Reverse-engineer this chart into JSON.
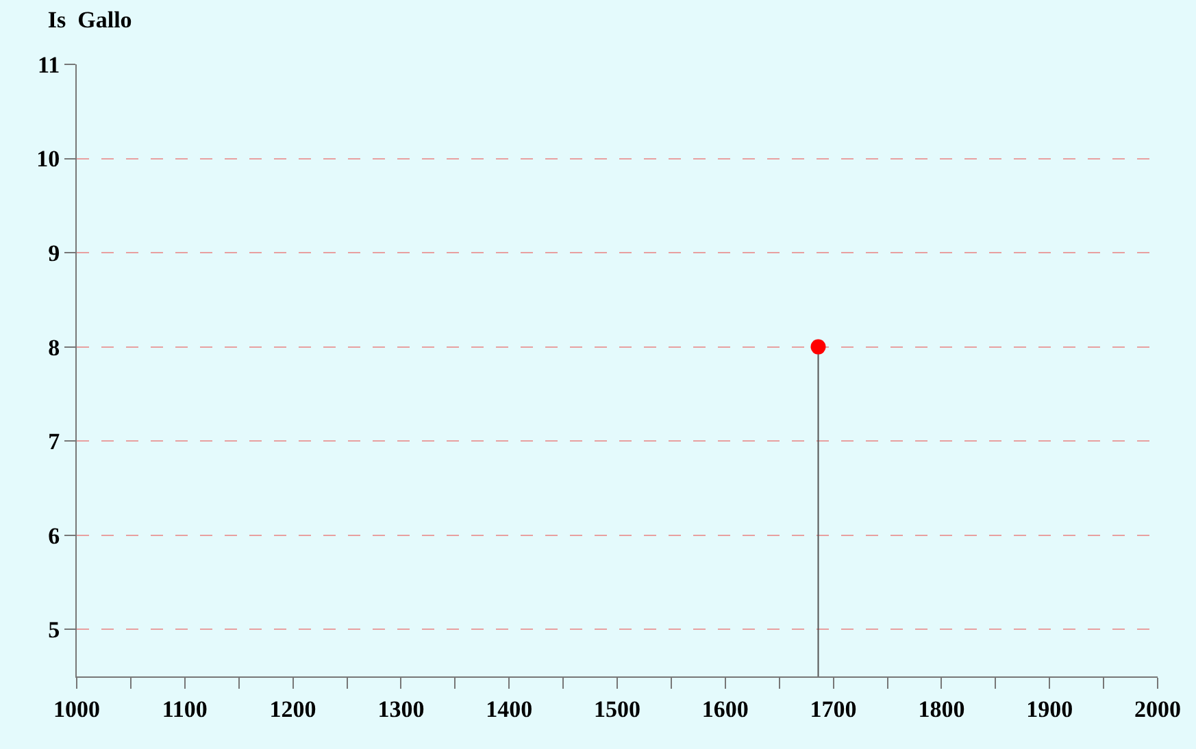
{
  "chart_data": {
    "type": "lollipop",
    "title": "Is  Gallo",
    "x": [
      1686
    ],
    "series": [
      {
        "color": "#ff0000",
        "values": [
          8
        ]
      }
    ],
    "xlim": [
      1000,
      2000
    ],
    "xticks": [
      1000,
      {
        "value": 1050,
        "label": null
      },
      1100,
      {
        "value": 1150,
        "label": null
      },
      1200,
      {
        "value": 1250,
        "label": null
      },
      1300,
      {
        "value": 1350,
        "label": null
      },
      1400,
      {
        "value": 1450,
        "label": null
      },
      1500,
      {
        "value": 1550,
        "label": null
      },
      1600,
      {
        "value": 1650,
        "label": null
      },
      1700,
      {
        "value": 1750,
        "label": null
      },
      1800,
      {
        "value": 1850,
        "label": null
      },
      1900,
      {
        "value": 1950,
        "label": null
      },
      2000
    ],
    "ylim": [
      4.5,
      11
    ],
    "yticks": [
      5,
      6,
      7,
      8,
      9,
      10,
      11
    ],
    "grid": "y",
    "marker": "circle"
  }
}
